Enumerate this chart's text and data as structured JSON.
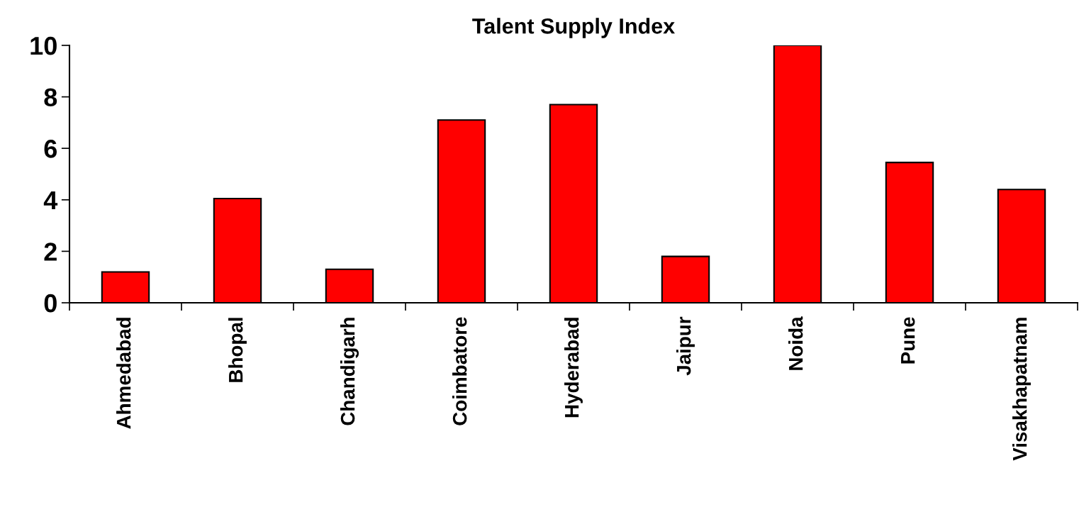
{
  "chart_data": {
    "type": "bar",
    "title": "Talent Supply Index",
    "categories": [
      "Ahmedabad",
      "Bhopal",
      "Chandigarh",
      "Coimbatore",
      "Hyderabad",
      "Jaipur",
      "Noida",
      "Pune",
      "Visakhapatnam"
    ],
    "values": [
      1.2,
      4.05,
      1.3,
      7.1,
      7.7,
      1.8,
      10,
      5.45,
      4.4
    ],
    "color": "#ff0000",
    "ylim": [
      0,
      10
    ],
    "yticks": [
      0,
      2,
      4,
      6,
      8,
      10
    ],
    "grid": false,
    "legend": false
  }
}
